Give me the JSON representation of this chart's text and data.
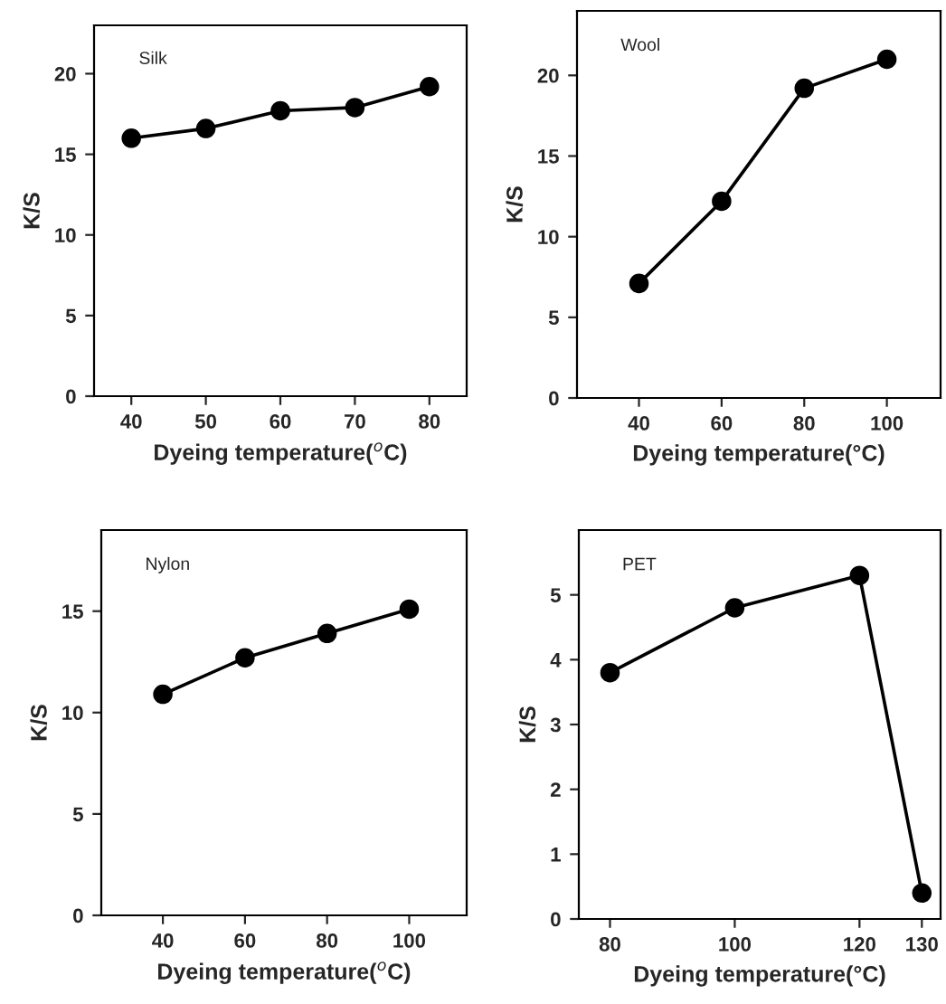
{
  "chart_data": [
    {
      "type": "line",
      "title": "Silk",
      "xlabel": "Dyeing temperature($^{o}$C)",
      "ylabel": "K/S",
      "xlim": [
        35,
        85
      ],
      "xticks": [
        40,
        50,
        60,
        70,
        80
      ],
      "ylim": [
        0,
        23
      ],
      "yticks": [
        0,
        5,
        10,
        15,
        20
      ],
      "marker": "circle",
      "line_style": "solid",
      "grid": false,
      "legend": false,
      "series": [
        {
          "color": "#000000",
          "x": [
            40,
            50,
            60,
            70,
            80
          ],
          "values": [
            16.0,
            16.6,
            17.7,
            17.9,
            19.2
          ]
        }
      ]
    },
    {
      "type": "line",
      "title": "Wool",
      "xlabel": "Dyeing temperature(°C)",
      "ylabel": "K/S",
      "xlim": [
        25,
        113
      ],
      "xticks": [
        40,
        60,
        80,
        100
      ],
      "ylim": [
        0,
        24
      ],
      "yticks": [
        0,
        5,
        10,
        15,
        20
      ],
      "marker": "circle",
      "line_style": "solid",
      "grid": false,
      "legend": false,
      "series": [
        {
          "color": "#000000",
          "x": [
            40,
            60,
            80,
            100
          ],
          "values": [
            7.1,
            12.2,
            19.2,
            21.0
          ]
        }
      ]
    },
    {
      "type": "line",
      "title": "Nylon",
      "xlabel": "Dyeing temperature($^{o}$C)",
      "ylabel": "K/S",
      "xlim": [
        25,
        114
      ],
      "xticks": [
        40,
        60,
        80,
        100
      ],
      "ylim": [
        0,
        19
      ],
      "yticks": [
        0,
        5,
        10,
        15
      ],
      "marker": "circle",
      "line_style": "solid",
      "grid": false,
      "legend": false,
      "series": [
        {
          "color": "#000000",
          "x": [
            40,
            60,
            80,
            100
          ],
          "values": [
            10.9,
            12.7,
            13.9,
            15.1
          ]
        }
      ]
    },
    {
      "type": "line",
      "title": "PET",
      "xlabel": "Dyeing temperature(°C)",
      "ylabel": "K/S",
      "xlim": [
        75,
        133
      ],
      "xticks": [
        80,
        100,
        120,
        130
      ],
      "ylim": [
        0,
        6
      ],
      "yticks": [
        0,
        1,
        2,
        3,
        4,
        5
      ],
      "marker": "circle",
      "line_style": "solid",
      "grid": false,
      "legend": false,
      "series": [
        {
          "color": "#000000",
          "x": [
            80,
            100,
            120,
            130
          ],
          "values": [
            3.8,
            4.8,
            5.3,
            0.4
          ]
        }
      ]
    }
  ]
}
